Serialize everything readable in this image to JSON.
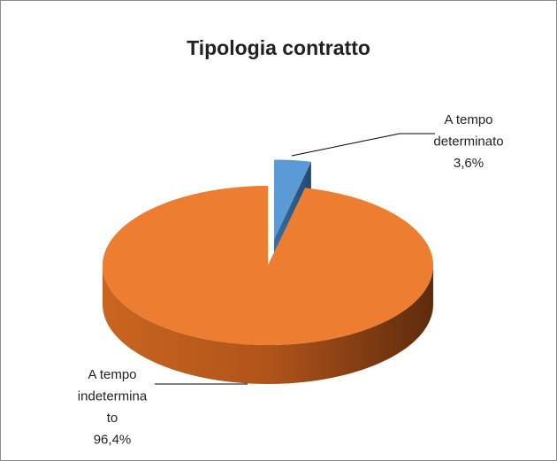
{
  "chart_data": {
    "type": "pie",
    "title": "Tipologia contratto",
    "categories": [
      "A tempo determinato",
      "A tempo indeterminato"
    ],
    "values": [
      3.6,
      96.4
    ],
    "value_labels": [
      "3,6%",
      "96,4%"
    ],
    "colors": [
      "#5b9bd5",
      "#ed7d31"
    ]
  }
}
